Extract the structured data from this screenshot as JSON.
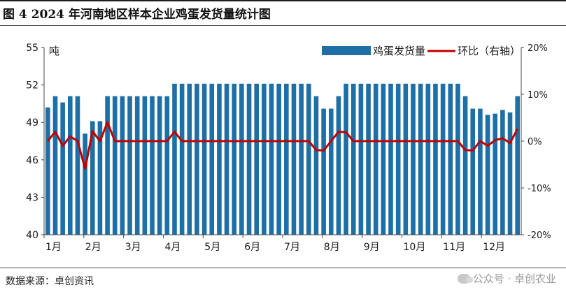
{
  "header": {
    "title": "图 4 2024 年河南地区样本企业鸡蛋发货量统计图"
  },
  "footer": {
    "source": "数据来源：卓创资讯",
    "watermark": "公众号 · 卓创农业"
  },
  "colors": {
    "bar": "#1d6fa5",
    "line": "#c00000",
    "text": "#1a1a1a"
  },
  "chart_data": {
    "type": "bar",
    "y_unit": "吨",
    "x_ticks": [
      "1月",
      "2月",
      "3月",
      "4月",
      "5月",
      "6月",
      "7月",
      "8月",
      "9月",
      "10月",
      "11月",
      "12月"
    ],
    "ylim": [
      40,
      55
    ],
    "yticks": [
      40,
      43,
      46,
      49,
      52,
      55
    ],
    "y2lim": [
      -20,
      20
    ],
    "y2ticks": [
      -20,
      -10,
      0,
      10,
      20
    ],
    "y2_tick_labels": [
      "-20%",
      "-10%",
      "0%",
      "10%",
      "20%"
    ],
    "grid": false,
    "legend_position": "top-right",
    "series": [
      {
        "name": "鸡蛋发货量",
        "type": "bar",
        "axis": "left",
        "values": [
          50.2,
          51.1,
          50.6,
          51.1,
          51.1,
          48.1,
          49.1,
          49.1,
          51.1,
          51.1,
          51.1,
          51.1,
          51.1,
          51.1,
          51.1,
          51.1,
          51.1,
          52.1,
          52.1,
          52.1,
          52.1,
          52.1,
          52.1,
          52.1,
          52.1,
          52.1,
          52.1,
          52.1,
          52.1,
          52.1,
          52.1,
          52.1,
          52.1,
          52.1,
          52.1,
          52.1,
          51.1,
          50.1,
          50.1,
          51.1,
          52.1,
          52.1,
          52.1,
          52.1,
          52.1,
          52.1,
          52.1,
          52.1,
          52.1,
          52.1,
          52.1,
          52.1,
          52.1,
          52.1,
          52.1,
          52.1,
          51.1,
          50.1,
          50.1,
          49.6,
          49.7,
          50.0,
          49.8,
          51.1
        ]
      },
      {
        "name": "环比（右轴）",
        "type": "line",
        "axis": "right",
        "values": [
          0,
          2.0,
          -1.0,
          1.0,
          0,
          -5.9,
          2.1,
          0,
          4.0,
          0,
          0,
          0,
          0,
          0,
          0,
          0,
          0,
          2.0,
          0,
          0,
          0,
          0,
          0,
          0,
          0,
          0,
          0,
          0,
          0,
          0,
          0,
          0,
          0,
          0,
          0,
          0,
          -1.9,
          -2.0,
          0,
          2.0,
          1.9,
          0,
          0,
          0,
          0,
          0,
          0,
          0,
          0,
          0,
          0,
          0,
          0,
          0,
          0,
          0,
          -1.9,
          -2.0,
          0,
          -1.0,
          0.2,
          0.6,
          -0.4,
          2.6
        ]
      }
    ]
  }
}
